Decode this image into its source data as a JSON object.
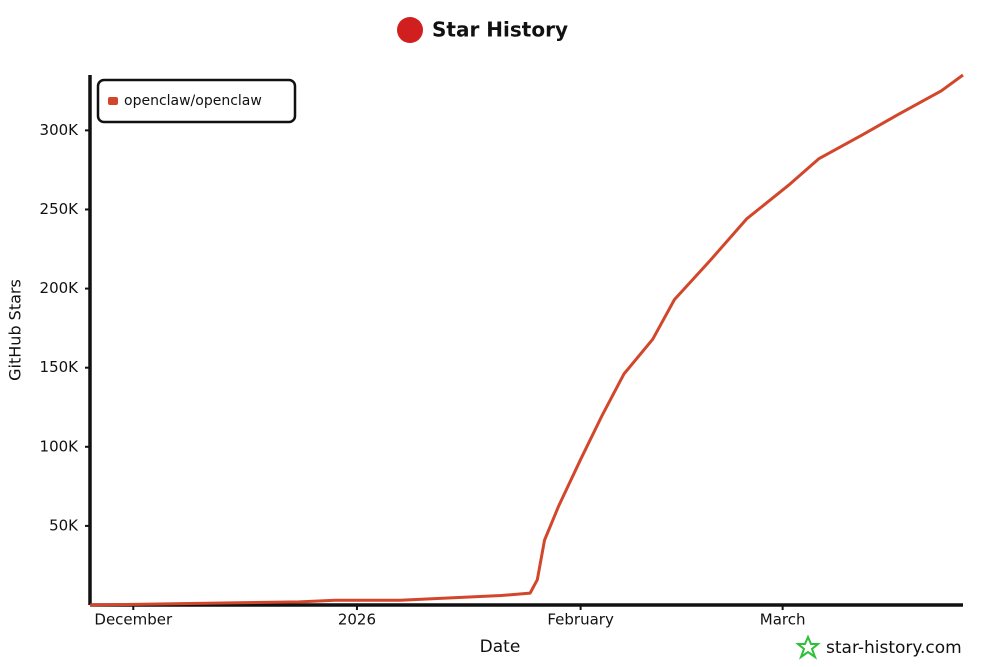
{
  "chart_data": {
    "type": "line",
    "title": "Star History",
    "x_label": "Date",
    "y_label": "GitHub Stars",
    "watermark": "star-history.com",
    "x": [
      -6,
      9,
      23,
      28,
      37,
      44,
      51,
      55,
      56,
      57,
      59,
      62,
      65,
      68,
      72,
      75,
      80,
      85,
      91,
      95,
      101,
      106,
      112,
      115
    ],
    "series": [
      {
        "name": "openclaw/openclaw",
        "color": "#d2472b",
        "values": [
          0,
          1000,
          2000,
          3000,
          3000,
          4500,
          6000,
          7500,
          16000,
          41000,
          63000,
          92000,
          120000,
          146000,
          168000,
          193000,
          218000,
          244000,
          266000,
          282000,
          297000,
          310000,
          325000,
          335000
        ]
      }
    ],
    "xlim": [
      -6,
      115
    ],
    "xticks": [
      {
        "value": 0,
        "label": "December"
      },
      {
        "value": 31,
        "label": "2026"
      },
      {
        "value": 62,
        "label": "February"
      },
      {
        "value": 90,
        "label": "March"
      }
    ],
    "ylim": [
      0,
      335000
    ],
    "yticks": [
      {
        "value": 50000,
        "label": "50K"
      },
      {
        "value": 100000,
        "label": "100K"
      },
      {
        "value": 150000,
        "label": "150K"
      },
      {
        "value": 200000,
        "label": "200K"
      },
      {
        "value": 250000,
        "label": "250K"
      },
      {
        "value": 300000,
        "label": "300K"
      }
    ],
    "legend": "top-left"
  }
}
